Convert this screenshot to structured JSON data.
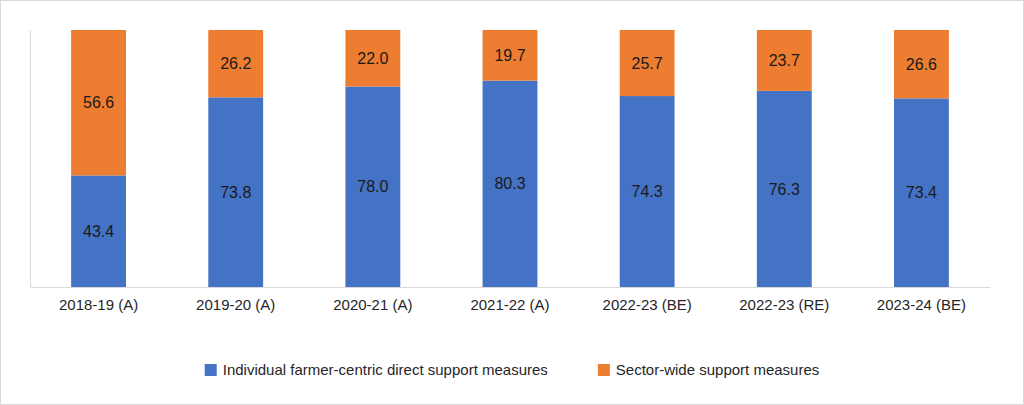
{
  "chart_data": {
    "type": "bar",
    "stacked": true,
    "data_labels": true,
    "tick_labels": "x",
    "grid": false,
    "legend": "bottom",
    "categories": [
      "2018-19 (A)",
      "2019-20 (A)",
      "2020-21 (A)",
      "2021-22 (A)",
      "2022-23 (BE)",
      "2022-23 (RE)",
      "2023-24 (BE)"
    ],
    "ylim": [
      0,
      100
    ],
    "series": [
      {
        "name": "Individual farmer-centric direct support measures",
        "color": "#4472c4",
        "values": [
          43.4,
          73.8,
          78.0,
          80.3,
          74.3,
          76.3,
          73.4
        ],
        "value_labels": [
          "43.4",
          "73.8",
          "78.0",
          "80.3",
          "74.3",
          "76.3",
          "73.4"
        ]
      },
      {
        "name": "Sector-wide support measures",
        "color": "#ed7d31",
        "values": [
          56.6,
          26.2,
          22.0,
          19.7,
          25.7,
          23.7,
          26.6
        ],
        "value_labels": [
          "56.6",
          "26.2",
          "22.0",
          "19.7",
          "25.7",
          "23.7",
          "26.6"
        ]
      }
    ]
  }
}
